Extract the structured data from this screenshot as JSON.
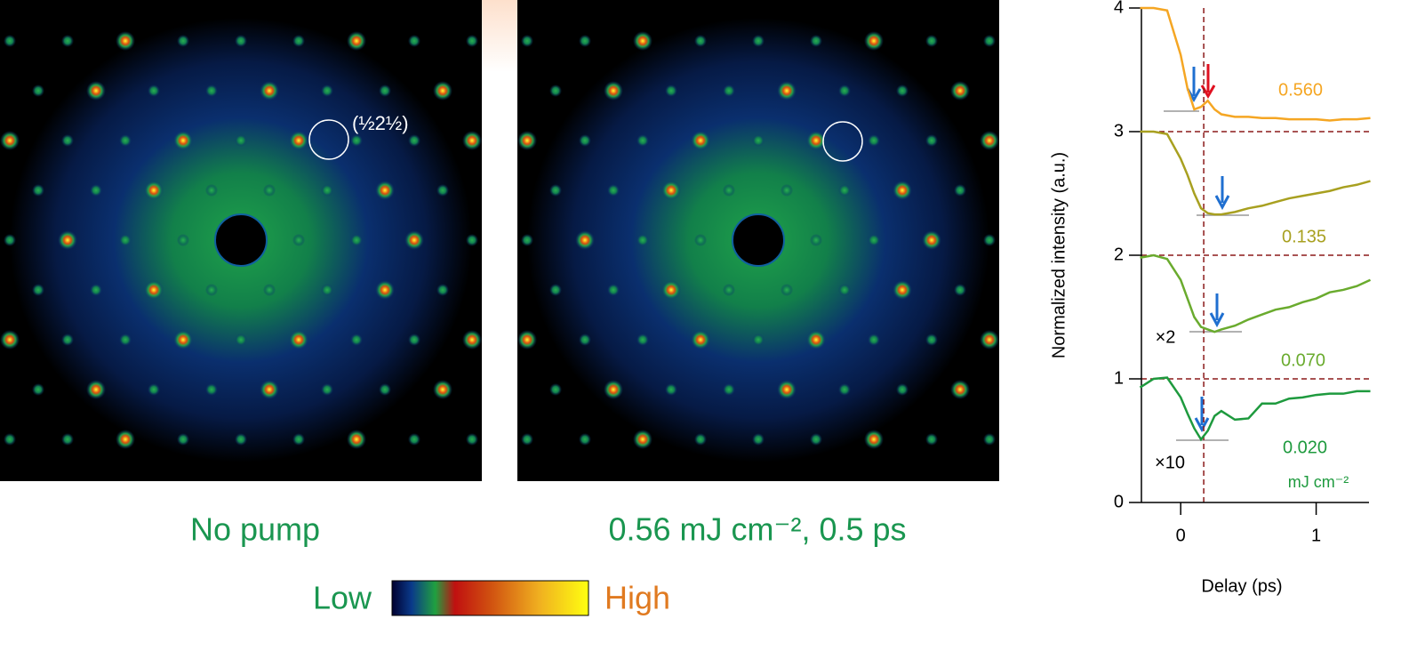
{
  "panels": [
    {
      "caption": "No pump",
      "annotation": "(½2½)"
    },
    {
      "caption": "0.56 mJ cm⁻², 0.5 ps"
    }
  ],
  "colorbar": {
    "low": "Low",
    "high": "High"
  },
  "chart_data": {
    "type": "line",
    "x_label": "Delay (ps)",
    "y_label": "Normalized intensity (a.u.)",
    "x": [
      -0.3,
      -0.2,
      -0.1,
      0,
      0.05,
      0.1,
      0.15,
      0.2,
      0.25,
      0.3,
      0.4,
      0.5,
      0.6,
      0.7,
      0.8,
      0.9,
      1.0,
      1.1,
      1.2,
      1.3,
      1.4
    ],
    "series": [
      {
        "name": "0.560",
        "color": "#f5a623",
        "values": [
          4.0,
          4.0,
          3.98,
          3.62,
          3.35,
          3.18,
          3.2,
          3.25,
          3.18,
          3.14,
          3.12,
          3.12,
          3.11,
          3.11,
          3.1,
          3.1,
          3.1,
          3.09,
          3.1,
          3.1,
          3.11
        ]
      },
      {
        "name": "0.135",
        "color": "#a8a020",
        "values": [
          3.0,
          3.0,
          2.98,
          2.78,
          2.65,
          2.5,
          2.38,
          2.34,
          2.33,
          2.33,
          2.35,
          2.38,
          2.4,
          2.43,
          2.46,
          2.48,
          2.5,
          2.52,
          2.55,
          2.57,
          2.6
        ]
      },
      {
        "name": "0.070",
        "color": "#6aab2e",
        "values": [
          1.98,
          2.0,
          1.97,
          1.8,
          1.65,
          1.5,
          1.42,
          1.4,
          1.38,
          1.4,
          1.43,
          1.48,
          1.52,
          1.56,
          1.58,
          1.62,
          1.65,
          1.7,
          1.72,
          1.75,
          1.8
        ]
      },
      {
        "name": "0.020",
        "color": "#1e9a3e",
        "values": [
          0.93,
          1.0,
          1.01,
          0.85,
          0.72,
          0.6,
          0.51,
          0.58,
          0.7,
          0.74,
          0.67,
          0.68,
          0.8,
          0.8,
          0.84,
          0.85,
          0.87,
          0.88,
          0.88,
          0.9,
          0.9
        ]
      }
    ],
    "unit_label": "mJ cm⁻²",
    "multipliers": [
      "×2",
      "×10"
    ],
    "xlim": [
      -0.29,
      1.39
    ],
    "xticks": [
      0,
      1
    ],
    "ylim": [
      0,
      4
    ],
    "yticks": [
      0,
      1,
      2,
      3,
      4
    ],
    "hlines": [
      1,
      2,
      3
    ],
    "vline": 0.17,
    "ref_color": "#8b1a1a"
  }
}
